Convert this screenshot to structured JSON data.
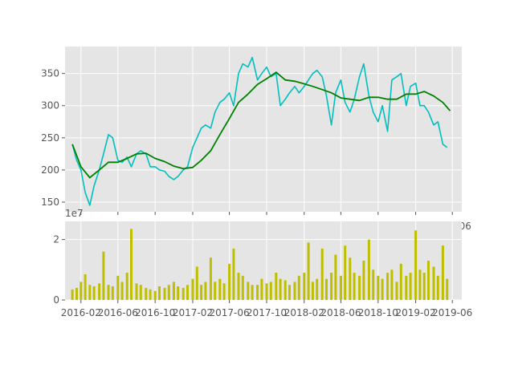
{
  "chart_data": [
    {
      "type": "line",
      "title": "",
      "xlabel": "",
      "ylabel": "",
      "ylim": [
        135,
        392
      ],
      "yticks": [
        150,
        200,
        250,
        300,
        350
      ],
      "xticks_visible": [
        "06"
      ],
      "grid": true,
      "legend": "none",
      "colors": {
        "price": "#00bfbf",
        "moving_average": "#008000"
      },
      "series": [
        {
          "x": [
            "2016-01-04",
            "2016-01-18",
            "2016-02-01",
            "2016-02-15",
            "2016-03-01",
            "2016-03-15",
            "2016-04-01",
            "2016-04-15",
            "2016-05-01",
            "2016-05-15",
            "2016-06-01",
            "2016-06-15",
            "2016-07-01",
            "2016-07-15",
            "2016-08-01",
            "2016-08-15",
            "2016-09-01",
            "2016-09-15",
            "2016-10-01",
            "2016-10-15",
            "2016-11-01",
            "2016-11-15",
            "2016-12-01",
            "2016-12-15",
            "2017-01-01",
            "2017-01-15",
            "2017-02-01",
            "2017-02-15",
            "2017-03-01",
            "2017-03-15",
            "2017-04-01",
            "2017-04-15",
            "2017-05-01",
            "2017-05-15",
            "2017-06-01",
            "2017-06-15",
            "2017-07-01",
            "2017-07-15",
            "2017-08-01",
            "2017-08-15",
            "2017-09-01",
            "2017-09-15",
            "2017-10-01",
            "2017-10-15",
            "2017-11-01",
            "2017-11-15",
            "2017-12-01",
            "2017-12-15",
            "2018-01-01",
            "2018-01-15",
            "2018-02-01",
            "2018-02-15",
            "2018-03-01",
            "2018-03-15",
            "2018-04-01",
            "2018-04-15",
            "2018-05-01",
            "2018-05-15",
            "2018-06-01",
            "2018-06-15",
            "2018-07-01",
            "2018-07-15",
            "2018-08-01",
            "2018-08-15",
            "2018-09-01",
            "2018-09-15",
            "2018-10-01",
            "2018-10-15",
            "2018-11-01",
            "2018-11-15",
            "2018-12-01",
            "2018-12-15",
            "2019-01-01",
            "2019-01-15",
            "2019-02-01",
            "2019-02-15",
            "2019-03-01",
            "2019-03-15",
            "2019-04-01",
            "2019-04-15",
            "2019-05-01",
            "2019-05-15"
          ],
          "values": [
            240,
            215,
            200,
            165,
            145,
            175,
            200,
            225,
            255,
            250,
            215,
            212,
            220,
            205,
            225,
            230,
            225,
            205,
            205,
            200,
            198,
            190,
            185,
            190,
            200,
            205,
            235,
            250,
            265,
            270,
            265,
            290,
            305,
            310,
            320,
            300,
            350,
            365,
            360,
            375,
            340,
            350,
            360,
            345,
            350,
            300,
            310,
            320,
            330,
            320,
            330,
            340,
            350,
            355,
            345,
            315,
            270,
            320,
            340,
            305,
            290,
            310,
            345,
            365,
            315,
            290,
            275,
            300,
            260,
            340,
            345,
            350,
            300,
            330,
            335,
            300,
            300,
            290,
            270,
            275,
            240,
            235
          ]
        },
        {
          "x": [
            "2016-01-04",
            "2016-02-01",
            "2016-03-01",
            "2016-04-01",
            "2016-05-01",
            "2016-06-01",
            "2016-07-01",
            "2016-08-01",
            "2016-09-01",
            "2016-10-01",
            "2016-11-01",
            "2016-12-01",
            "2017-01-01",
            "2017-02-01",
            "2017-03-01",
            "2017-04-01",
            "2017-05-01",
            "2017-06-01",
            "2017-07-01",
            "2017-08-01",
            "2017-09-01",
            "2017-10-01",
            "2017-11-01",
            "2017-12-01",
            "2018-01-01",
            "2018-02-01",
            "2018-03-01",
            "2018-04-01",
            "2018-05-01",
            "2018-06-01",
            "2018-07-01",
            "2018-08-01",
            "2018-09-01",
            "2018-10-01",
            "2018-11-01",
            "2018-12-01",
            "2019-01-01",
            "2019-02-01",
            "2019-03-01",
            "2019-04-01",
            "2019-05-01",
            "2019-05-25"
          ],
          "values": [
            240,
            205,
            188,
            200,
            212,
            212,
            218,
            225,
            226,
            218,
            213,
            206,
            202,
            204,
            215,
            230,
            255,
            280,
            305,
            318,
            333,
            342,
            352,
            340,
            338,
            334,
            330,
            325,
            320,
            312,
            310,
            308,
            313,
            313,
            310,
            310,
            318,
            318,
            322,
            315,
            305,
            292
          ]
        }
      ]
    },
    {
      "type": "bar",
      "title": "",
      "xlabel": "",
      "ylabel": "",
      "ylim": [
        0,
        2.6
      ],
      "yticks": [
        0,
        2
      ],
      "y_offset_label": "1e7",
      "xticks": [
        "2016-02",
        "2016-06",
        "2016-10",
        "2017-02",
        "2017-06",
        "2017-10",
        "2018-02",
        "2018-06",
        "2018-10",
        "2019-02",
        "2019-06"
      ],
      "grid": true,
      "legend": "none",
      "colors": {
        "volume": "#bfbf00"
      },
      "series": [
        {
          "x": [
            "2016-01-04",
            "2016-01-18",
            "2016-02-01",
            "2016-02-15",
            "2016-03-01",
            "2016-03-15",
            "2016-04-01",
            "2016-04-15",
            "2016-05-01",
            "2016-05-15",
            "2016-06-01",
            "2016-06-15",
            "2016-07-01",
            "2016-07-15",
            "2016-08-01",
            "2016-08-15",
            "2016-09-01",
            "2016-09-15",
            "2016-10-01",
            "2016-10-15",
            "2016-11-01",
            "2016-11-15",
            "2016-12-01",
            "2016-12-15",
            "2017-01-01",
            "2017-01-15",
            "2017-02-01",
            "2017-02-15",
            "2017-03-01",
            "2017-03-15",
            "2017-04-01",
            "2017-04-15",
            "2017-05-01",
            "2017-05-15",
            "2017-06-01",
            "2017-06-15",
            "2017-07-01",
            "2017-07-15",
            "2017-08-01",
            "2017-08-15",
            "2017-09-01",
            "2017-09-15",
            "2017-10-01",
            "2017-10-15",
            "2017-11-01",
            "2017-11-15",
            "2017-12-01",
            "2017-12-15",
            "2018-01-01",
            "2018-01-15",
            "2018-02-01",
            "2018-02-15",
            "2018-03-01",
            "2018-03-15",
            "2018-04-01",
            "2018-04-15",
            "2018-05-01",
            "2018-05-15",
            "2018-06-01",
            "2018-06-15",
            "2018-07-01",
            "2018-07-15",
            "2018-08-01",
            "2018-08-15",
            "2018-09-01",
            "2018-09-15",
            "2018-10-01",
            "2018-10-15",
            "2018-11-01",
            "2018-11-15",
            "2018-12-01",
            "2018-12-15",
            "2019-01-01",
            "2019-01-15",
            "2019-02-01",
            "2019-02-15",
            "2019-03-01",
            "2019-03-15",
            "2019-04-01",
            "2019-04-15",
            "2019-05-01",
            "2019-05-15"
          ],
          "values": [
            0.35,
            0.4,
            0.6,
            0.85,
            0.5,
            0.45,
            0.55,
            1.6,
            0.5,
            0.45,
            0.8,
            0.6,
            0.9,
            2.35,
            0.55,
            0.5,
            0.4,
            0.35,
            0.3,
            0.45,
            0.4,
            0.5,
            0.6,
            0.45,
            0.4,
            0.5,
            0.7,
            1.1,
            0.5,
            0.6,
            1.4,
            0.6,
            0.7,
            0.55,
            1.2,
            1.7,
            0.9,
            0.8,
            0.6,
            0.5,
            0.5,
            0.7,
            0.55,
            0.6,
            0.9,
            0.7,
            0.65,
            0.5,
            0.6,
            0.8,
            0.9,
            1.9,
            0.6,
            0.7,
            1.7,
            0.7,
            0.9,
            1.5,
            0.8,
            1.8,
            1.4,
            0.9,
            0.8,
            1.3,
            2.0,
            1.0,
            0.8,
            0.7,
            0.9,
            1.0,
            0.6,
            1.2,
            0.8,
            0.9,
            2.3,
            1.0,
            0.9,
            1.3,
            1.1,
            0.8,
            1.8,
            0.7
          ]
        }
      ]
    }
  ]
}
